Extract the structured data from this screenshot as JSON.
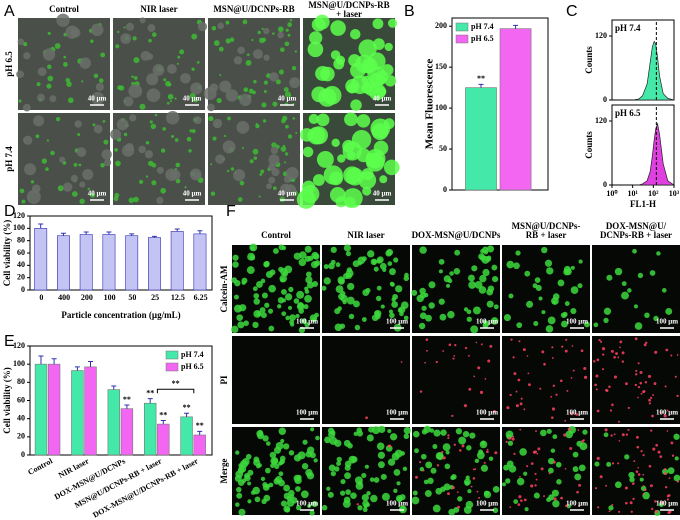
{
  "figure": {
    "panel_labels": [
      "A",
      "B",
      "C",
      "D",
      "E",
      "F"
    ],
    "panel_a": {
      "columns": [
        [
          "Control"
        ],
        [
          "NIR laser"
        ],
        [
          "MSN@U/DCNPs-RB"
        ],
        [
          "MSN@U/DCNPs-RB",
          "+ laser"
        ]
      ],
      "rows": [
        "pH 6.5",
        "pH 7.4"
      ],
      "scale_bar": "40 µm"
    },
    "panel_f": {
      "columns": [
        [
          "Control"
        ],
        [
          "NIR laser"
        ],
        [
          "DOX-MSN@U/DCNPs"
        ],
        [
          "MSN@U/DCNPs-",
          "RB + laser"
        ],
        [
          "DOX-MSN@U/",
          "DCNPs-RB + laser"
        ]
      ],
      "rows": [
        "Calcein-AM",
        "PI",
        "Merge"
      ],
      "scale_bar": "100 µm"
    }
  },
  "chart_data": [
    {
      "type": "bar",
      "ylabel": "Mean Fluorescence",
      "categories": [
        null
      ],
      "series": [
        {
          "name": "pH 7.4",
          "color": "#44e8a8",
          "values": [
            125
          ],
          "errors": [
            4
          ],
          "significance": [
            "**"
          ]
        },
        {
          "name": "pH 6.5",
          "color": "#f266f2",
          "values": [
            197
          ],
          "errors": [
            4
          ]
        }
      ],
      "ylim": [
        0,
        210
      ],
      "yticks": [
        0,
        50,
        100,
        150,
        200
      ],
      "legend": "upper-left"
    },
    {
      "type": "area",
      "label": "pH 7.4",
      "ylabel": "Counts",
      "color": "#44e8a8",
      "log_x": true,
      "x": [
        10,
        20,
        30,
        50,
        70,
        90,
        110,
        130,
        160,
        200,
        300,
        500,
        1000
      ],
      "values": [
        0,
        2,
        8,
        30,
        70,
        100,
        110,
        105,
        80,
        45,
        12,
        3,
        0
      ],
      "xlim": [
        1,
        1000
      ],
      "ylim": [
        0,
        150
      ],
      "yticks": [
        0,
        120
      ],
      "marker_x": 140
    },
    {
      "type": "area",
      "label": "pH 6.5",
      "ylabel": "Counts",
      "xlabel": "FL1-H",
      "color": "#e040e0",
      "log_x": true,
      "x": [
        10,
        20,
        30,
        50,
        70,
        90,
        110,
        130,
        160,
        200,
        300,
        500,
        1000
      ],
      "values": [
        0,
        0,
        2,
        8,
        25,
        55,
        85,
        105,
        115,
        95,
        40,
        8,
        0
      ],
      "xlim": [
        1,
        1000
      ],
      "ylim": [
        0,
        150
      ],
      "yticks": [
        0,
        120
      ],
      "marker_x": 140,
      "xticks": [
        {
          "value": 1,
          "label": "10⁰"
        },
        {
          "value": 10,
          "label": "10¹"
        },
        {
          "value": 100,
          "label": "10²"
        },
        {
          "value": 1000,
          "label": "10³"
        }
      ]
    },
    {
      "type": "bar",
      "ylabel": "Cell viability (%)",
      "xlabel": "Particle concentration (µg/mL)",
      "color": "#c4c4f4",
      "categories": [
        "0",
        "400",
        "200",
        "100",
        "50",
        "25",
        "12.5",
        "6.25"
      ],
      "values": [
        100,
        88,
        90,
        90,
        88,
        85,
        95,
        91
      ],
      "errors": [
        7,
        4,
        4,
        4,
        3,
        2,
        4,
        5
      ],
      "ylim": [
        0,
        120
      ],
      "yticks": [
        0,
        20,
        40,
        60,
        80,
        100,
        120
      ]
    },
    {
      "type": "bar",
      "ylabel": "Cell viability (%)",
      "categories": [
        "Control",
        "NIR laser",
        "DOX-MSN@U/DCNPs",
        "MSN@U/DCNPs-RB + laser",
        "DOX-MSN@U/DCNPs-RB + laser"
      ],
      "series": [
        {
          "name": "pH 7.4",
          "color": "#44e8a8",
          "values": [
            100,
            93,
            72,
            57,
            42
          ],
          "errors": [
            9,
            4,
            4,
            5,
            4
          ],
          "significance": [
            null,
            null,
            null,
            "**",
            "**"
          ]
        },
        {
          "name": "pH 6.5",
          "color": "#f266f2",
          "values": [
            100,
            97,
            51,
            34,
            22
          ],
          "errors": [
            6,
            6,
            4,
            4,
            4
          ],
          "significance": [
            null,
            null,
            "**",
            "**",
            "**"
          ]
        }
      ],
      "comparison_label": "**",
      "ylim": [
        0,
        120
      ],
      "yticks": [
        0,
        20,
        40,
        60,
        80,
        100,
        120
      ],
      "legend": "upper-right"
    }
  ]
}
